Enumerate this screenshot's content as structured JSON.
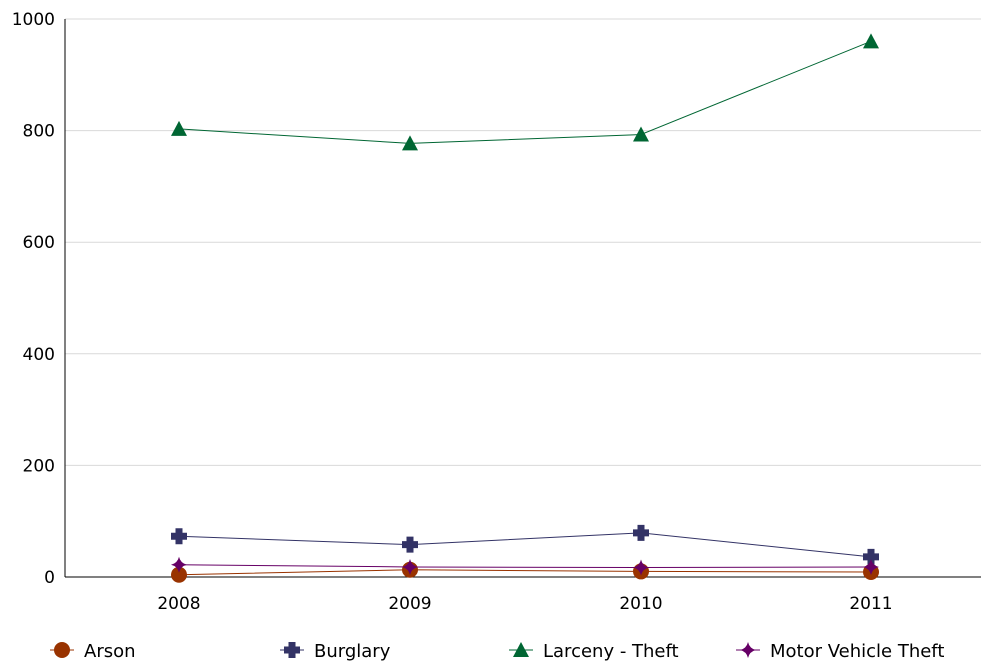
{
  "chart_data": {
    "type": "line",
    "title": "",
    "xlabel": "",
    "ylabel": "",
    "categories": [
      "2008",
      "2009",
      "2010",
      "2011"
    ],
    "ylim": [
      0,
      1000
    ],
    "yticks": [
      0,
      200,
      400,
      600,
      800,
      1000
    ],
    "grid": true,
    "legend_position": "bottom",
    "series": [
      {
        "name": "Arson",
        "values": [
          4,
          13,
          10,
          9
        ],
        "color": "#993300",
        "marker": "circle"
      },
      {
        "name": "Burglary",
        "values": [
          73,
          58,
          79,
          36
        ],
        "color": "#333366",
        "marker": "plus"
      },
      {
        "name": "Larceny - Theft",
        "values": [
          803,
          777,
          793,
          960
        ],
        "color": "#006633",
        "marker": "triangle"
      },
      {
        "name": "Motor Vehicle Theft",
        "values": [
          22,
          18,
          17,
          18
        ],
        "color": "#660066",
        "marker": "diamond"
      }
    ]
  }
}
